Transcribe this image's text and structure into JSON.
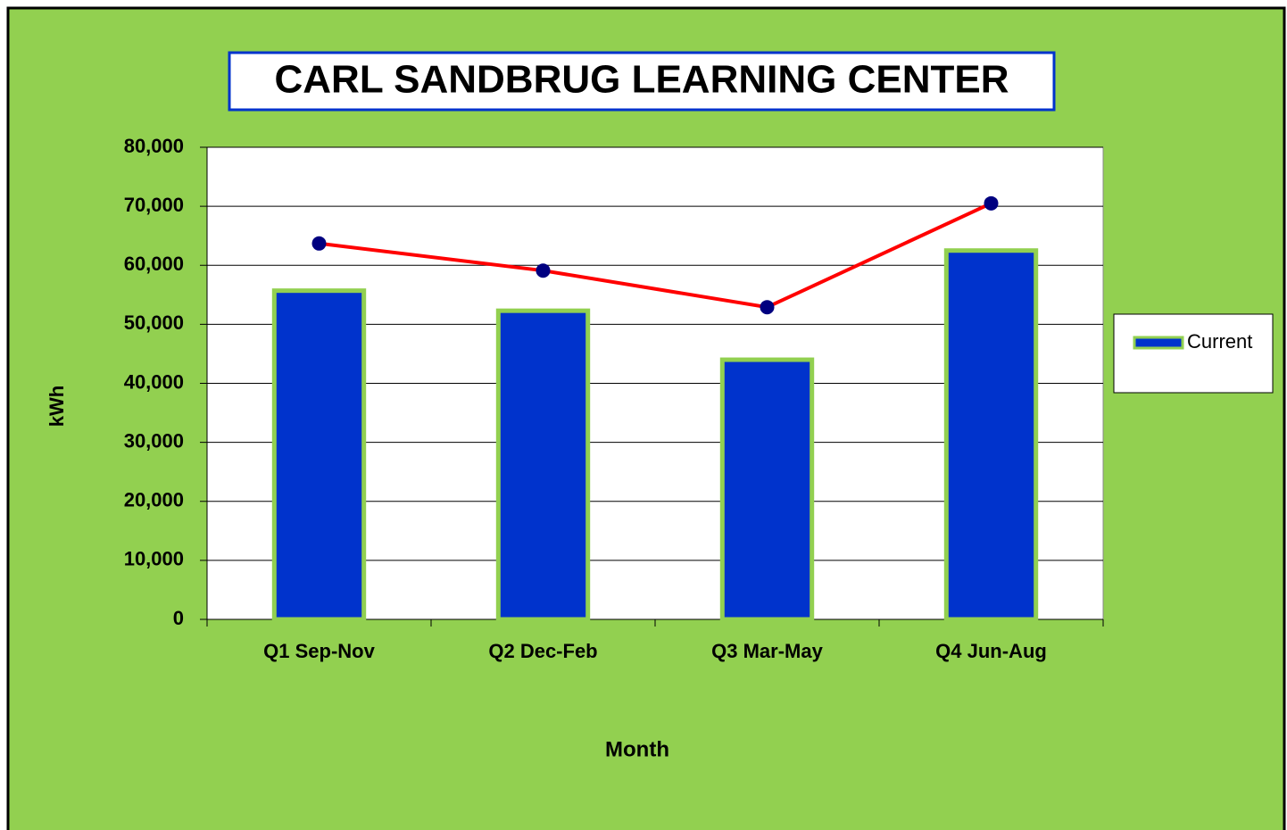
{
  "chart_data": {
    "type": "bar",
    "title": "CARL SANDBRUG LEARNING CENTER",
    "x_label": "Month",
    "y_label": "kWh",
    "categories": [
      "Q1 Sep-Nov",
      "Q2 Dec-Feb",
      "Q3 Mar-May",
      "Q4 Jun-Aug"
    ],
    "series": [
      {
        "name": "Current",
        "type": "bar",
        "color": "#0033cc",
        "values": [
          55700,
          52300,
          44000,
          62500
        ]
      },
      {
        "type": "line",
        "color": "#ff0000",
        "marker_color": "#000080",
        "values": [
          63700,
          59100,
          52900,
          70500
        ]
      }
    ],
    "ylim": [
      0,
      80000
    ],
    "yticks": [
      0,
      {
        "value": 10000,
        "label": "10,000"
      },
      {
        "value": 20000,
        "label": "20,000"
      },
      {
        "value": 30000,
        "label": "30,000"
      },
      {
        "value": 40000,
        "label": "40,000"
      },
      {
        "value": 50000,
        "label": "50,000"
      },
      {
        "value": 60000,
        "label": "60,000"
      },
      {
        "value": 70000,
        "label": "70,000"
      },
      {
        "value": 80000,
        "label": "80,000"
      }
    ],
    "grid": true,
    "legend": "right"
  }
}
